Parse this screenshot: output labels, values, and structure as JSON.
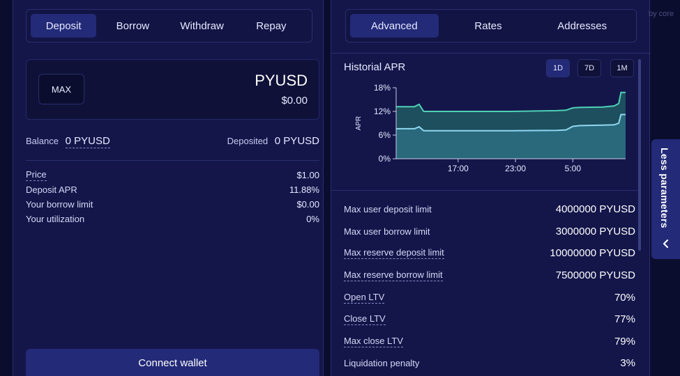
{
  "deposit_panel": {
    "tabs": [
      {
        "label": "Deposit",
        "active": true
      },
      {
        "label": "Borrow",
        "active": false
      },
      {
        "label": "Withdraw",
        "active": false
      },
      {
        "label": "Repay",
        "active": false
      }
    ],
    "amount": {
      "max_label": "MAX",
      "token": "PYUSD",
      "usd_value": "$0.00"
    },
    "balance_label": "Balance",
    "balance_value": "0 PYUSD",
    "deposited_label": "Deposited",
    "deposited_value": "0 PYUSD",
    "params": [
      {
        "label": "Price",
        "value": "$1.00"
      },
      {
        "label": "Deposit APR",
        "value": "11.88%"
      },
      {
        "label": "Your borrow limit",
        "value": "$0.00"
      },
      {
        "label": "Your utilization",
        "value": "0%"
      }
    ],
    "connect_label": "Connect wallet"
  },
  "advanced_panel": {
    "tabs": [
      {
        "label": "Advanced",
        "active": true
      },
      {
        "label": "Rates",
        "active": false
      },
      {
        "label": "Addresses",
        "active": false
      }
    ],
    "chart_title": "Historial APR",
    "ranges": [
      {
        "label": "1D",
        "active": true
      },
      {
        "label": "7D",
        "active": false
      },
      {
        "label": "1M",
        "active": false
      }
    ],
    "params": [
      {
        "label": "Max user deposit limit",
        "value": "4000000 PYUSD"
      },
      {
        "label": "Max user borrow limit",
        "value": "3000000 PYUSD"
      },
      {
        "label": "Max reserve deposit limit",
        "value": "10000000 PYUSD"
      },
      {
        "label": "Max reserve borrow limit",
        "value": "7500000 PYUSD"
      },
      {
        "label": "Open LTV",
        "value": "70%"
      },
      {
        "label": "Close LTV",
        "value": "77%"
      },
      {
        "label": "Max close LTV",
        "value": "79%"
      },
      {
        "label": "Liquidation penalty",
        "value": "3%"
      }
    ]
  },
  "side_tab": {
    "label": "Less parameters",
    "icon": "chevron-left-icon"
  },
  "corner_text": "by core",
  "colors": {
    "background": "#0b0d2e",
    "panel": "#14164a",
    "accent": "#232a78",
    "borrow_line": "#4fd1b5",
    "deposit_line": "#8fd8f0"
  },
  "chart_data": {
    "type": "area",
    "title": "Historial APR",
    "ylabel": "APR",
    "ylim": [
      0,
      18
    ],
    "yticks": [
      "0%",
      "6%",
      "12%",
      "18%"
    ],
    "xticks": [
      "17:00",
      "23:00",
      "5:00"
    ],
    "grid": false,
    "series": [
      {
        "x": [
          0,
          0.08,
          0.1,
          0.12,
          0.3,
          0.5,
          0.7,
          0.74,
          0.77,
          0.8,
          0.9,
          0.95,
          0.97,
          0.98,
          1.0
        ],
        "values": [
          13.2,
          13.2,
          13.8,
          12.0,
          12.0,
          12.0,
          12.2,
          12.3,
          12.9,
          13.0,
          13.1,
          13.4,
          14.0,
          16.8,
          16.8
        ]
      },
      {
        "x": [
          0,
          0.08,
          0.1,
          0.12,
          0.3,
          0.5,
          0.7,
          0.74,
          0.77,
          0.8,
          0.9,
          0.95,
          0.97,
          0.98,
          1.0
        ],
        "values": [
          7.6,
          7.6,
          8.1,
          7.1,
          7.1,
          7.1,
          7.2,
          7.3,
          8.2,
          8.4,
          8.5,
          8.6,
          9.0,
          11.2,
          11.2
        ]
      }
    ]
  }
}
